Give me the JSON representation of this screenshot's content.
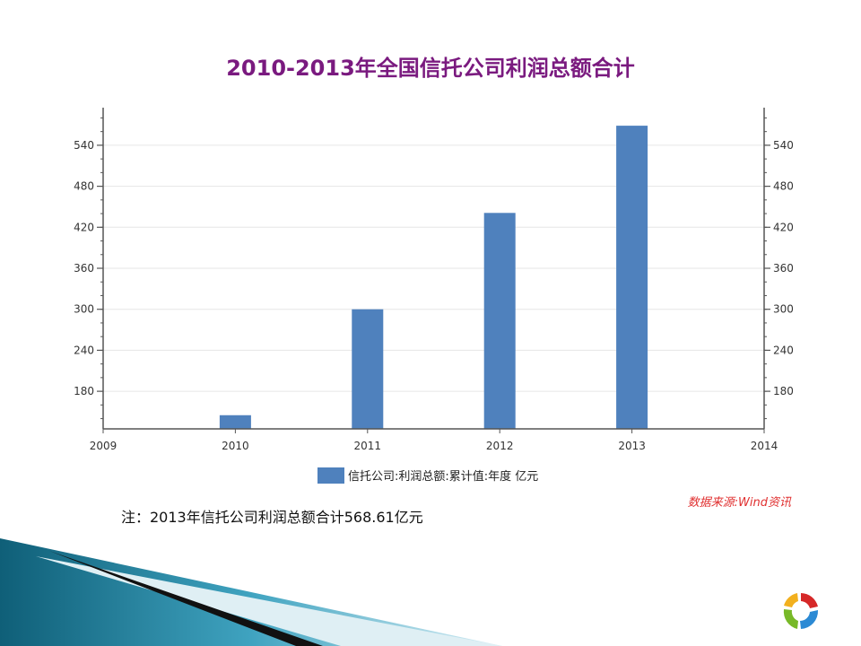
{
  "title": "2010-2013年全国信托公司利润总额合计",
  "legend_label": "信托公司:利润总额:累计值:年度 亿元",
  "source": "数据来源:Wind资讯",
  "note": "注：2013年信托公司利润总额合计568.61亿元",
  "colors": {
    "bar": "#4f81bd",
    "title": "#7a1a7f",
    "source": "#e03030"
  },
  "chart_data": {
    "type": "bar",
    "title": "2010-2013年全国信托公司利润总额合计",
    "x": [
      2010,
      2011,
      2012,
      2013
    ],
    "x_ticks": [
      "2009",
      "2010",
      "2011",
      "2012",
      "2013",
      "2014"
    ],
    "xlim": [
      2009,
      2014
    ],
    "series": [
      {
        "name": "信托公司:利润总额:累计值:年度 亿元",
        "values": [
          145,
          300,
          441,
          568.61
        ]
      }
    ],
    "y_ticks": [
      180,
      240,
      300,
      360,
      420,
      480,
      540
    ],
    "ylim": [
      125,
      595
    ],
    "secondary_y_axis": true,
    "grid": true,
    "legend": "bottom"
  }
}
